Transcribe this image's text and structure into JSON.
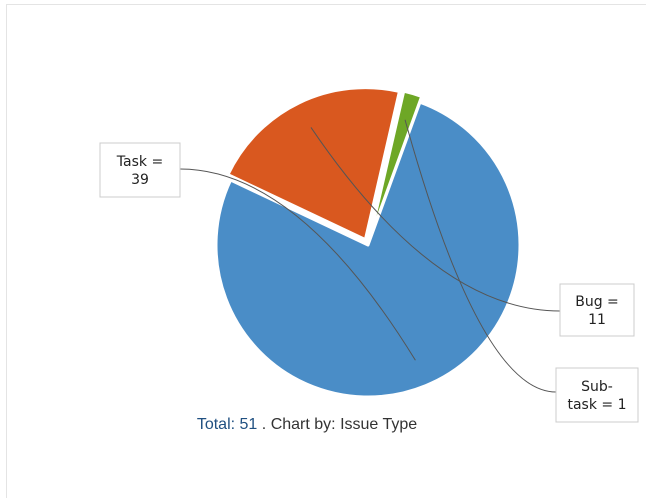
{
  "chart_data": {
    "type": "pie",
    "slices": [
      {
        "label": "Task",
        "value": 39,
        "color": "#4a8dc7",
        "label_lines": [
          "Task =",
          "39"
        ]
      },
      {
        "label": "Bug",
        "value": 11,
        "color": "#d9581f",
        "label_lines": [
          "Bug =",
          "11"
        ]
      },
      {
        "label": "Sub-task",
        "value": 1,
        "color": "#6ea726",
        "label_lines": [
          "Sub-",
          "task = 1"
        ]
      }
    ]
  },
  "footer": {
    "total_label": "Total:",
    "total_value": "51",
    "separator": ".",
    "chart_by_label": "Chart by:",
    "chart_by_value": "Issue Type"
  }
}
